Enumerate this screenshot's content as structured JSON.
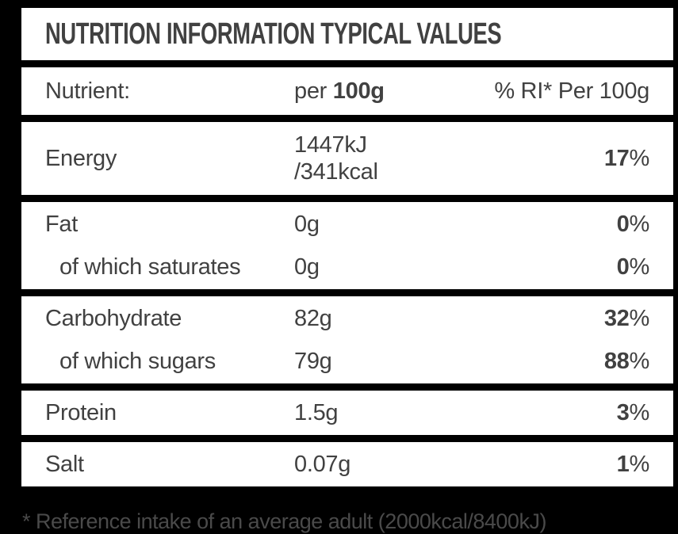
{
  "title": "NUTRITION INFORMATION TYPICAL VALUES",
  "header": {
    "nutrient_col": "Nutrient:",
    "per_col_prefix": "per ",
    "per_col_amount": "100g",
    "ri_col": "% RI* Per 100g"
  },
  "sections": [
    {
      "rows": [
        {
          "name": "Energy",
          "values": [
            "1447kJ",
            "/341kcal"
          ],
          "ri_number": "17",
          "ri_unit": "%",
          "sub": false
        }
      ]
    },
    {
      "rows": [
        {
          "name": "Fat",
          "values": [
            "0g"
          ],
          "ri_number": "0",
          "ri_unit": "%",
          "sub": false
        },
        {
          "name": "of which saturates",
          "values": [
            "0g"
          ],
          "ri_number": "0",
          "ri_unit": "%",
          "sub": true
        }
      ]
    },
    {
      "rows": [
        {
          "name": "Carbohydrate",
          "values": [
            "82g"
          ],
          "ri_number": "32",
          "ri_unit": "%",
          "sub": false
        },
        {
          "name": "of which sugars",
          "values": [
            "79g"
          ],
          "ri_number": "88",
          "ri_unit": "%",
          "sub": true
        }
      ]
    },
    {
      "rows": [
        {
          "name": "Protein",
          "values": [
            "1.5g"
          ],
          "ri_number": "3",
          "ri_unit": "%",
          "sub": false
        }
      ]
    },
    {
      "rows": [
        {
          "name": "Salt",
          "values": [
            "0.07g"
          ],
          "ri_number": "1",
          "ri_unit": "%",
          "sub": false
        }
      ]
    }
  ],
  "footnote": "* Reference intake of an average adult (2000kcal/8400kJ)",
  "colors": {
    "background": "#000000",
    "panel": "#ffffff",
    "text": "#414141",
    "footnote_text": "#4a4a4a"
  }
}
